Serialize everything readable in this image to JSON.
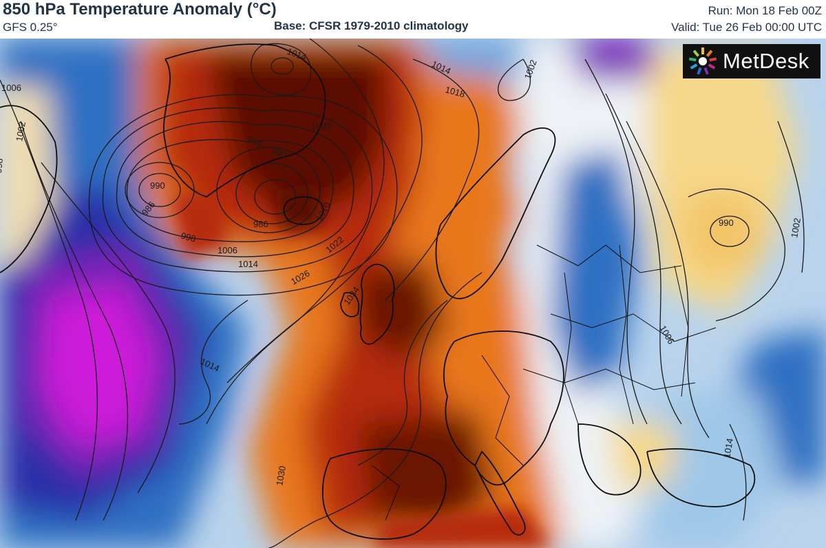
{
  "header": {
    "title": "850 hPa Temperature Anomaly (°C)",
    "model": "GFS 0.25°",
    "base": "Base: CFSR 1979-2010 climatology",
    "run": "Run: Mon 18 Feb 00Z",
    "valid": "Valid: Tue 26 Feb 00:00 UTC"
  },
  "logo": {
    "text": "MetDesk",
    "icon": "metdesk-burst-logo"
  },
  "isobar_labels": {
    "l1014a": "1014",
    "l1018": "1018",
    "l1002a": "1002",
    "l1014b": "1014",
    "l990a": "990",
    "l986a": "986",
    "l998": "998",
    "l1006": "1006",
    "l1014c": "1014",
    "l1026": "1026",
    "l1022": "1022",
    "l1010": "1010",
    "l986b": "986",
    "l990b": "990",
    "l994": "994",
    "l1002b": "1002",
    "l998b": "998",
    "l1034": "1034",
    "l1014d": "1014",
    "l1030": "1030",
    "l990c": "990",
    "l1002c": "1002",
    "l1006b": "1006",
    "l1014e": "1014",
    "l1006c": "1006",
    "l1002d": "1002"
  },
  "palette": {
    "deep_red": "#5a0d06",
    "red": "#b62a0a",
    "orange": "#e8771f",
    "yellow": "#f6d88a",
    "white": "#eef2f6",
    "light_blue": "#9fc7e8",
    "blue": "#2f6fc2",
    "navy": "#2b2fa8",
    "purple": "#7a23b8",
    "magenta": "#cc1ed9",
    "coastline": "#0d0d0d",
    "isobar": "#1a1a1a"
  }
}
